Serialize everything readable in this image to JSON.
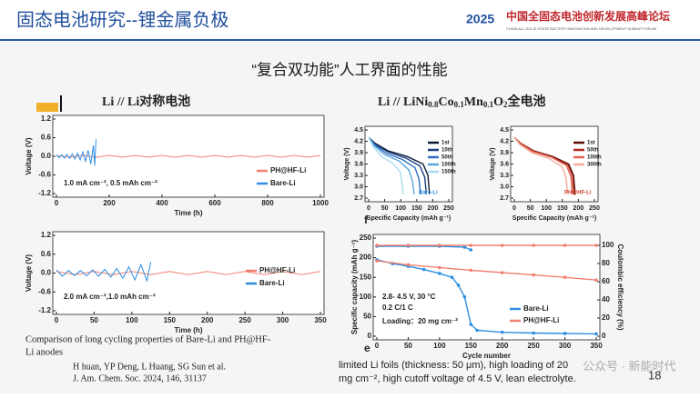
{
  "header": {
    "title": "固态电池研究--锂金属负极",
    "logo_year": "2025",
    "logo_name": "中国全固态电池创新发展高峰论坛",
    "logo_subtitle": "CHINA ALL-SOLID-STATE BATTERY INNOVATION AND DEVELOPMENT SUMMIT FORUM"
  },
  "subtitle": "“复合双功能”人工界面的性能",
  "left_heading": "Li // Li对称电池",
  "right_heading": [
    "Li // LiNi",
    "0.8",
    "Co",
    "0.1",
    "Mn",
    "0.1",
    "O",
    "2",
    "全电池"
  ],
  "caption": [
    "Comparison of long cycling properties of Bare-Li and PH@HF-",
    "Li anodes"
  ],
  "reference": [
    "H huan, YP Deng, L Huang, SG Sun et al.",
    "J. Am. Chem. Soc. 2024, 146, 31137"
  ],
  "summary": [
    "limited Li foils (thickness: 50 μm), high loading of 20",
    "mg cm⁻², high cutoff voltage of 4.5 V, lean electrolyte."
  ],
  "panel_letters": [
    "f",
    "e"
  ],
  "watermark": "公众号 · 新能时代",
  "page_number": "18",
  "chart_data": [
    {
      "type": "line",
      "xlabel": "Time (h)",
      "ylabel": "Voltage (V)",
      "xlim": [
        0,
        1000
      ],
      "ylim": [
        -1.2,
        1.2
      ],
      "xticks": [
        0,
        200,
        400,
        600,
        800,
        1000
      ],
      "yticks": [
        -1.2,
        -0.6,
        {
          "value": 0,
          "label": "0.0"
        },
        0.6,
        1.2
      ],
      "annotations": [
        "1.0 mA cm⁻², 0.5 mAh cm⁻²"
      ],
      "series": [
        {
          "name": "PH@HF-Li",
          "color": "#f08070",
          "x": [
            0,
            50,
            100,
            150,
            200,
            250,
            300,
            350,
            400,
            450,
            500,
            550,
            600,
            650,
            700,
            750,
            800,
            850,
            900,
            950,
            1000
          ],
          "values": [
            0.03,
            -0.03,
            0.03,
            -0.03,
            0.03,
            -0.03,
            0.03,
            -0.03,
            0.03,
            -0.03,
            0.03,
            -0.03,
            0.03,
            -0.03,
            0.03,
            -0.03,
            0.03,
            -0.03,
            0.03,
            -0.03,
            0.03
          ]
        },
        {
          "name": "Bare-Li",
          "color": "#2e8ee0",
          "x": [
            0,
            10,
            20,
            30,
            40,
            50,
            60,
            70,
            80,
            90,
            100,
            110,
            120,
            130,
            140,
            145,
            150
          ],
          "values": [
            0.05,
            -0.05,
            0.05,
            -0.06,
            0.06,
            -0.07,
            0.08,
            -0.09,
            0.1,
            -0.12,
            0.14,
            -0.16,
            0.2,
            -0.25,
            0.35,
            -0.3,
            0.55
          ]
        }
      ]
    },
    {
      "type": "line",
      "xlabel": "Time (h)",
      "ylabel": "Voltage (V)",
      "xlim": [
        0,
        350
      ],
      "ylim": [
        -1.2,
        1.2
      ],
      "xticks": [
        0,
        50,
        100,
        150,
        200,
        250,
        300,
        350
      ],
      "yticks": [
        -1.2,
        -0.6,
        {
          "value": 0,
          "label": "0.0"
        },
        0.6,
        1.2
      ],
      "annotations": [
        "2.0 mA cm⁻²,1.0 mAh cm⁻²"
      ],
      "series": [
        {
          "name": "PH@HF-Li",
          "color": "#f08070",
          "x": [
            0,
            25,
            50,
            75,
            100,
            125,
            150,
            175,
            200,
            225,
            250,
            275,
            300,
            325,
            350
          ],
          "values": [
            0.05,
            -0.05,
            0.05,
            -0.05,
            0.05,
            -0.05,
            0.05,
            -0.05,
            0.05,
            -0.05,
            0.05,
            -0.05,
            0.05,
            -0.05,
            0.05
          ]
        },
        {
          "name": "Bare-Li",
          "color": "#2e8ee0",
          "x": [
            0,
            8,
            16,
            24,
            32,
            40,
            48,
            56,
            64,
            72,
            80,
            88,
            96,
            104,
            112,
            120,
            125
          ],
          "values": [
            0.1,
            -0.1,
            0.08,
            -0.08,
            0.08,
            -0.09,
            0.1,
            -0.1,
            0.12,
            -0.13,
            0.15,
            -0.17,
            0.2,
            -0.22,
            0.27,
            -0.25,
            0.35
          ]
        }
      ]
    },
    {
      "type": "line",
      "xlabel": "Specific Capacity (mAh g⁻¹)",
      "ylabel": "Voltage (V)",
      "xlim": [
        0,
        250
      ],
      "ylim": [
        2.7,
        4.5
      ],
      "xticks": [
        0,
        50,
        100,
        150,
        200,
        250
      ],
      "yticks": [
        2.7,
        {
          "value": 3,
          "label": "3.0"
        },
        3.3,
        3.6,
        3.9,
        4.2,
        4.5
      ],
      "annotations": [
        "Bare-Li"
      ],
      "series": [
        {
          "name": "1st",
          "color": "#0b1a33",
          "x": [
            0,
            20,
            60,
            120,
            170,
            185,
            190
          ],
          "values": [
            4.3,
            4.15,
            3.95,
            3.8,
            3.6,
            3.3,
            2.8
          ]
        },
        {
          "name": "10th",
          "color": "#1b3f80",
          "x": [
            0,
            20,
            60,
            115,
            160,
            175,
            180
          ],
          "values": [
            4.3,
            4.12,
            3.92,
            3.76,
            3.55,
            3.25,
            2.8
          ]
        },
        {
          "name": "50th",
          "color": "#2f6fc0",
          "x": [
            0,
            20,
            55,
            105,
            145,
            157,
            162
          ],
          "values": [
            4.3,
            4.1,
            3.88,
            3.72,
            3.5,
            3.2,
            2.8
          ]
        },
        {
          "name": "100th",
          "color": "#5aa6e0",
          "x": [
            0,
            18,
            50,
            95,
            125,
            137,
            142
          ],
          "values": [
            4.3,
            4.08,
            3.85,
            3.68,
            3.45,
            3.15,
            2.8
          ]
        },
        {
          "name": "150th",
          "color": "#a8dcf0",
          "x": [
            0,
            15,
            40,
            75,
            98,
            104,
            108
          ],
          "values": [
            4.3,
            4.05,
            3.8,
            3.62,
            3.4,
            3.1,
            2.8
          ]
        }
      ]
    },
    {
      "type": "line",
      "xlabel": "Specific Capacity (mAh g⁻¹)",
      "ylabel": "Voltage (V)",
      "xlim": [
        0,
        250
      ],
      "ylim": [
        2.7,
        4.5
      ],
      "xticks": [
        0,
        50,
        100,
        150,
        200,
        250
      ],
      "yticks": [
        2.7,
        {
          "value": 3,
          "label": "3.0"
        },
        3.3,
        3.6,
        3.9,
        4.2,
        4.5
      ],
      "annotations": [
        "PH@HF-Li"
      ],
      "series": [
        {
          "name": "1st",
          "color": "#5a0f0a",
          "x": [
            0,
            20,
            60,
            120,
            170,
            185,
            190
          ],
          "values": [
            4.3,
            4.15,
            3.95,
            3.8,
            3.6,
            3.3,
            2.8
          ]
        },
        {
          "name": "50th",
          "color": "#b02a1a",
          "x": [
            0,
            20,
            60,
            118,
            167,
            182,
            186
          ],
          "values": [
            4.3,
            4.14,
            3.94,
            3.79,
            3.58,
            3.28,
            2.8
          ]
        },
        {
          "name": "100th",
          "color": "#e0604a",
          "x": [
            0,
            20,
            58,
            116,
            163,
            177,
            181
          ],
          "values": [
            4.3,
            4.13,
            3.93,
            3.78,
            3.56,
            3.26,
            2.8
          ]
        },
        {
          "name": "300th",
          "color": "#f4aa98",
          "x": [
            0,
            18,
            55,
            108,
            150,
            162,
            166
          ],
          "values": [
            4.3,
            4.11,
            3.9,
            3.75,
            3.52,
            3.22,
            2.8
          ]
        }
      ]
    },
    {
      "type": "line",
      "xlabel": "Cycle number",
      "ylabel": "Specific capacity (mAh g⁻¹)",
      "y2label": "Coulombic efficiency (%)",
      "xlim": [
        0,
        350
      ],
      "ylim": [
        0,
        250
      ],
      "y2lim": [
        0,
        108
      ],
      "xticks": [
        0,
        50,
        100,
        150,
        200,
        250,
        300,
        350
      ],
      "yticks": [
        0,
        50,
        100,
        150,
        200,
        250
      ],
      "y2ticks": [
        0,
        20,
        40,
        60,
        80,
        100
      ],
      "annotations": [
        "2.8- 4.5 V, 30 °C",
        "0.2 C/1 C",
        "Loading：20 mg cm⁻²"
      ],
      "series": [
        {
          "name": "Bare-Li",
          "color": "#2e8ee0",
          "x": [
            0,
            25,
            50,
            75,
            100,
            120,
            130,
            140,
            150,
            160,
            200,
            250,
            300,
            350
          ],
          "values": [
            195,
            185,
            178,
            170,
            160,
            150,
            130,
            100,
            30,
            15,
            10,
            8,
            7,
            6
          ]
        },
        {
          "name": "PH@HF-Li",
          "color": "#f08070",
          "x": [
            0,
            50,
            100,
            150,
            200,
            250,
            300,
            350
          ],
          "values": [
            192,
            182,
            175,
            168,
            162,
            156,
            150,
            143
          ]
        },
        {
          "axis": "y2",
          "color": "#2e8ee0",
          "x": [
            0,
            50,
            100,
            140,
            150
          ],
          "values": [
            99,
            99,
            99,
            98,
            95
          ]
        },
        {
          "axis": "y2",
          "color": "#f08070",
          "x": [
            0,
            50,
            100,
            150,
            200,
            250,
            300,
            350
          ],
          "values": [
            100,
            100,
            100,
            100,
            100,
            100,
            100,
            100
          ]
        }
      ]
    }
  ]
}
